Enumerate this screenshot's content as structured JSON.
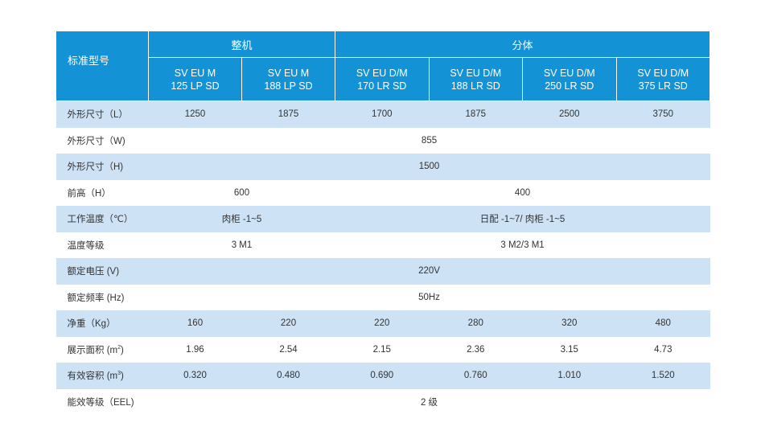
{
  "header": {
    "corner": "标准型号",
    "group_whole": "整机",
    "group_split": "分体",
    "models": [
      {
        "line1": "SV EU M",
        "line2": "125 LP SD"
      },
      {
        "line1": "SV EU M",
        "line2": "188 LP SD"
      },
      {
        "line1": "SV EU D/M",
        "line2": "170 LR SD"
      },
      {
        "line1": "SV EU D/M",
        "line2": "188 LR SD"
      },
      {
        "line1": "SV EU D/M",
        "line2": "250 LR SD"
      },
      {
        "line1": "SV EU D/M",
        "line2": "375 LR SD"
      }
    ]
  },
  "rows": {
    "length": {
      "label": "外形尺寸（L）",
      "values": [
        "1250",
        "1875",
        "1700",
        "1875",
        "2500",
        "3750"
      ]
    },
    "width": {
      "label": "外形尺寸（W)",
      "value": "855"
    },
    "height": {
      "label": "外形尺寸（H)",
      "value": "1500"
    },
    "front": {
      "label": "前高（H）",
      "whole": "600",
      "split": "400"
    },
    "temp": {
      "label": "工作温度（℃）",
      "whole": "肉柜 -1~5",
      "split": "日配 -1~7/ 肉柜 -1~5"
    },
    "temp_class": {
      "label": "温度等级",
      "whole": "3 M1",
      "split": "3 M2/3 M1"
    },
    "voltage": {
      "label": "额定电压 (V)",
      "value": "220V"
    },
    "frequency": {
      "label": "额定频率 (Hz)",
      "value": "50Hz"
    },
    "weight": {
      "label": "净重（Kg）",
      "values": [
        "160",
        "220",
        "220",
        "280",
        "320",
        "480"
      ]
    },
    "display": {
      "label": "展示面积 (m",
      "sup": "2",
      "suffix": ")",
      "values": [
        "1.96",
        "2.54",
        "2.15",
        "2.36",
        "3.15",
        "4.73"
      ]
    },
    "volume": {
      "label": "有效容积 (m",
      "sup": "3",
      "suffix": ")",
      "values": [
        "0.320",
        "0.480",
        "0.690",
        "0.760",
        "1.010",
        "1.520"
      ]
    },
    "energy": {
      "label": "能效等级（EEL)",
      "value": "2 级"
    }
  },
  "colors": {
    "header_bg": "#1393d6",
    "stripe": "#cde3f5",
    "text": "#333333"
  }
}
